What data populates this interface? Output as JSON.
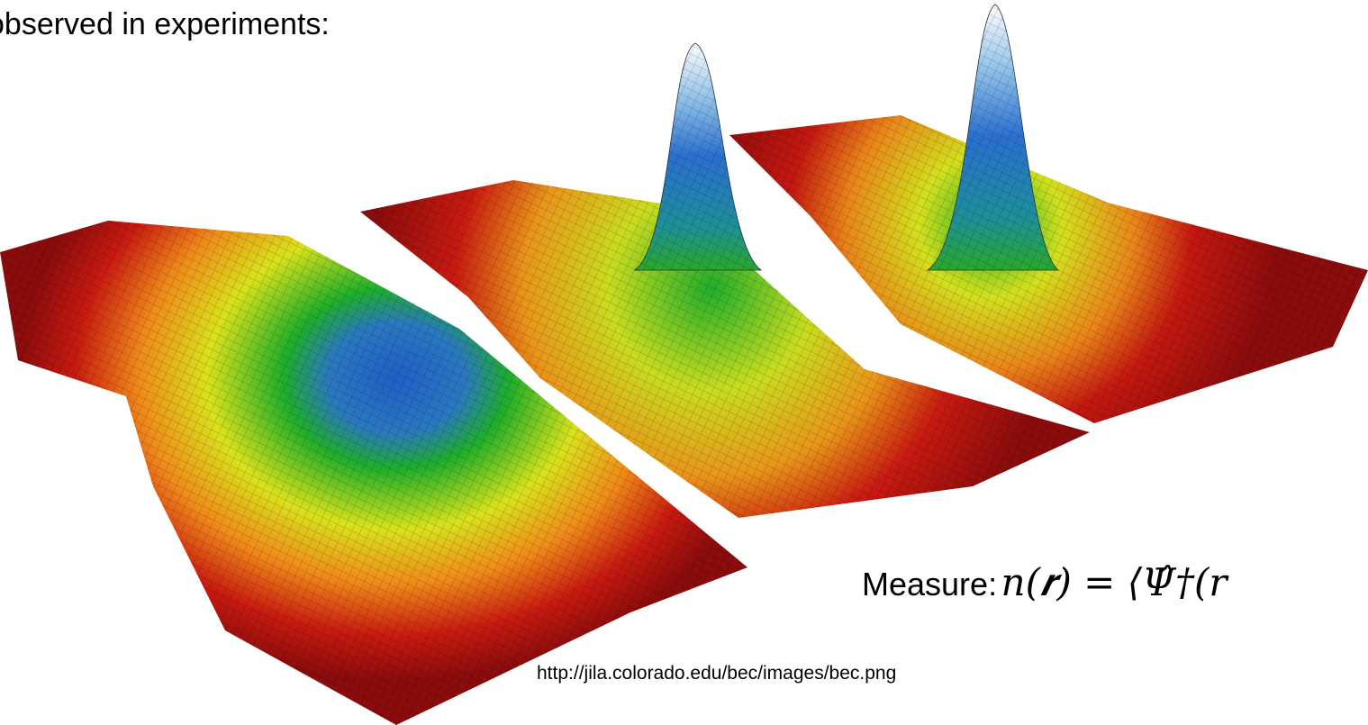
{
  "slide": {
    "heading": "observed in experiments:",
    "measure_label": "Measure:",
    "formula": "n(𝒓) = ⟨Ψ̂†(𝑟",
    "image_credit": "http://jila.colorado.edu/bec/images/bec.png"
  }
}
